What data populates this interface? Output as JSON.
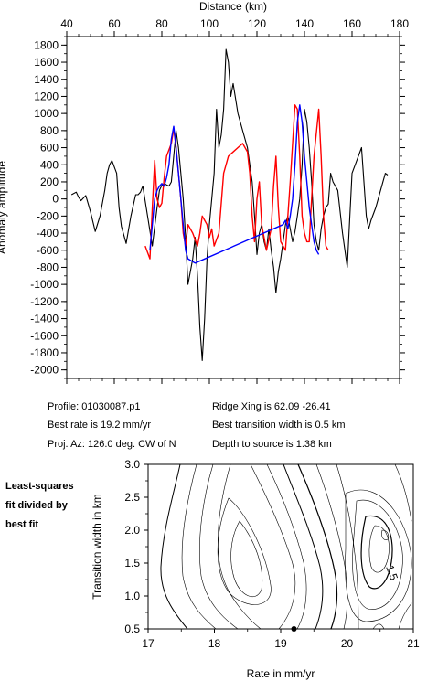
{
  "chart_data": [
    {
      "type": "line",
      "title": "",
      "xlabel": "Distance (km)",
      "ylabel": "Anomaly amplitude",
      "xlim": [
        40,
        180
      ],
      "ylim": [
        -2100,
        1900
      ],
      "x_ticks": [
        40,
        60,
        80,
        100,
        120,
        140,
        160,
        180
      ],
      "y_ticks": [
        -2000,
        -1800,
        -1600,
        -1400,
        -1200,
        -1000,
        -800,
        -600,
        -400,
        -200,
        0,
        200,
        400,
        600,
        800,
        1000,
        1200,
        1400,
        1600,
        1800
      ],
      "x_minor_step": 5,
      "y_minor_step": 100,
      "grid": false,
      "series": [
        {
          "color": "#000000",
          "x": [
            42,
            44,
            45,
            46,
            48,
            50,
            52,
            54,
            56,
            57,
            58,
            59,
            61,
            62,
            63,
            65,
            67,
            69,
            70,
            71,
            72,
            74,
            76,
            78,
            79,
            80,
            81,
            83,
            84,
            85,
            86,
            87,
            88,
            89,
            90,
            91,
            92,
            93,
            94,
            95,
            96,
            97,
            98,
            99,
            100,
            101,
            102,
            103,
            104,
            105,
            106,
            107,
            108,
            109,
            110,
            112,
            114,
            116,
            118,
            119,
            120,
            121,
            122,
            123,
            124,
            125,
            126,
            127,
            128,
            129,
            130,
            131,
            132,
            133,
            134,
            135,
            136,
            137,
            138,
            139,
            140,
            141,
            142,
            143,
            144,
            145,
            146,
            147,
            148,
            149,
            150,
            151,
            152,
            154,
            156,
            158,
            160,
            162,
            164,
            166,
            167,
            168,
            170,
            172,
            174,
            175
          ],
          "y": [
            50,
            80,
            20,
            -20,
            40,
            -150,
            -380,
            -200,
            100,
            300,
            400,
            450,
            300,
            -100,
            -320,
            -520,
            -200,
            50,
            50,
            80,
            150,
            -200,
            -550,
            -100,
            100,
            160,
            180,
            150,
            200,
            500,
            800,
            600,
            300,
            0,
            -450,
            -1000,
            -850,
            -700,
            -450,
            -900,
            -1500,
            -1890,
            -1400,
            -700,
            -300,
            0,
            300,
            1050,
            600,
            750,
            1050,
            1750,
            1600,
            1200,
            1350,
            1000,
            800,
            600,
            200,
            -200,
            -650,
            -400,
            -300,
            -500,
            -600,
            -350,
            -600,
            -800,
            -1100,
            -850,
            -700,
            -500,
            -300,
            -200,
            -350,
            -500,
            -380,
            -200,
            0,
            400,
            1050,
            900,
            600,
            200,
            -300,
            -500,
            -600,
            -350,
            -200,
            -100,
            -60,
            300,
            200,
            100,
            -400,
            -800,
            300,
            450,
            600,
            -200,
            -350,
            -250,
            -100,
            100,
            300,
            280
          ]
        },
        {
          "color": "#ff0000",
          "x": [
            73,
            75,
            76,
            77,
            78,
            79,
            80,
            81,
            82,
            84,
            85,
            86,
            88,
            89,
            90,
            91,
            93,
            95,
            96,
            97,
            98,
            99,
            100,
            101,
            102,
            104,
            106,
            108,
            110,
            112,
            114,
            116,
            117,
            118,
            119,
            120,
            121,
            122,
            124,
            126,
            127,
            128,
            129,
            130,
            132,
            133,
            134,
            136,
            137,
            138,
            139,
            140,
            141,
            142,
            144,
            146,
            147,
            148,
            149,
            150
          ],
          "y": [
            -550,
            -700,
            -100,
            450,
            0,
            -100,
            -50,
            250,
            500,
            650,
            820,
            600,
            0,
            -400,
            -550,
            -300,
            -400,
            -550,
            -400,
            -200,
            -250,
            -300,
            -450,
            -350,
            -550,
            -400,
            300,
            500,
            550,
            600,
            650,
            550,
            300,
            -200,
            -500,
            0,
            200,
            -300,
            -600,
            -350,
            150,
            500,
            -100,
            -500,
            -600,
            -200,
            200,
            1100,
            1050,
            500,
            -200,
            -400,
            -500,
            -500,
            500,
            1050,
            500,
            -200,
            -550,
            -600
          ]
        },
        {
          "color": "#0000ff",
          "x": [
            75,
            76,
            77,
            78,
            79,
            80,
            81,
            82,
            83,
            84,
            85,
            86,
            87,
            88,
            89,
            90,
            91,
            94,
            131,
            132,
            133,
            134,
            135,
            136,
            137,
            138,
            139,
            140,
            141,
            142,
            143,
            144,
            145,
            146
          ],
          "y": [
            -600,
            -300,
            0,
            100,
            150,
            180,
            150,
            250,
            400,
            700,
            850,
            600,
            300,
            0,
            -300,
            -600,
            -700,
            -750,
            -300,
            -250,
            -350,
            -200,
            0,
            400,
            900,
            1100,
            900,
            500,
            200,
            -100,
            -300,
            -500,
            -600,
            -650
          ]
        }
      ]
    },
    {
      "type": "contour",
      "title": "",
      "xlabel": "Rate in mm/yr",
      "ylabel": "Transition width in km",
      "xlim": [
        17,
        21
      ],
      "ylim": [
        0.5,
        3.0
      ],
      "x_ticks": [
        17,
        18,
        19,
        20,
        21
      ],
      "y_ticks": [
        0.5,
        1.0,
        1.5,
        2.0,
        2.5,
        3.0
      ],
      "x_tick_labels": [
        "17",
        "18",
        "19",
        "20",
        "21"
      ],
      "y_tick_labels": [
        "0.5",
        "1.0",
        "1.5",
        "2.0",
        "2.5",
        "3.0"
      ],
      "best_fit_point": {
        "x": 19.2,
        "y": 0.5
      },
      "contour_label": "1.5"
    }
  ],
  "info": {
    "profile": "Profile: 01030087.p1",
    "ridge_xing": "Ridge Xing is 62.09 -26.41",
    "best_rate": "Best rate is 19.2 mm/yr",
    "best_transition": "Best transition width is 0.5 km",
    "proj_az": "Proj. Az: 126.0 deg. CW of N",
    "depth": "Depth to source is    1.38 km"
  },
  "side_note": {
    "line1": "Least-squares",
    "line2": "fit divided by",
    "line3": "best fit"
  }
}
